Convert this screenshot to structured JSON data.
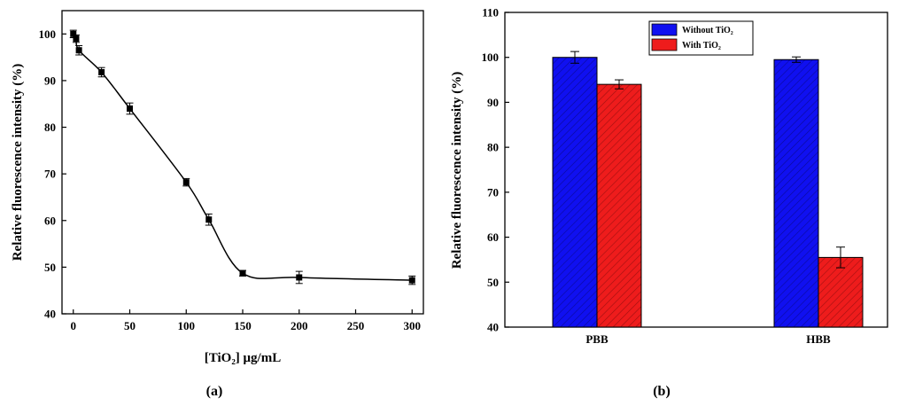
{
  "chart_data": [
    {
      "type": "scatter",
      "panel_label": "(a)",
      "xlabel": "[TiO₂] μg/mL",
      "ylabel": "Relative fluorescence intensity (%)",
      "xlim": [
        -10,
        310
      ],
      "ylim": [
        40,
        105
      ],
      "xticks": [
        0,
        50,
        100,
        150,
        200,
        250,
        300
      ],
      "yticks": [
        40,
        50,
        60,
        70,
        80,
        90,
        100
      ],
      "series": [
        {
          "x": [
            0,
            2.5,
            5,
            25,
            50,
            100,
            120,
            150,
            200,
            300
          ],
          "y": [
            100,
            99,
            96.5,
            91.8,
            84,
            68.2,
            60.2,
            48.7,
            47.8,
            47.2
          ],
          "error": [
            0.8,
            0.8,
            1.0,
            1.0,
            1.2,
            0.8,
            1.2,
            0.6,
            1.3,
            0.9
          ],
          "fit": true
        }
      ],
      "grid": false
    },
    {
      "type": "bar",
      "panel_label": "(b)",
      "xlabel": "",
      "ylabel": "Relative fluorescence intensity (%)",
      "categories": [
        "PBB",
        "HBB"
      ],
      "ylim": [
        40,
        110
      ],
      "yticks": [
        40,
        50,
        60,
        70,
        80,
        90,
        100,
        110
      ],
      "series": [
        {
          "name": "Without TiO₂",
          "values": [
            100,
            99.5
          ],
          "error": [
            1.3,
            0.6
          ],
          "color": "#1010f0"
        },
        {
          "name": "With TiO₂",
          "values": [
            94,
            55.5
          ],
          "error": [
            1.0,
            2.3
          ],
          "color": "#ee1c1c"
        }
      ],
      "legend": "top-center",
      "grid": false
    }
  ]
}
